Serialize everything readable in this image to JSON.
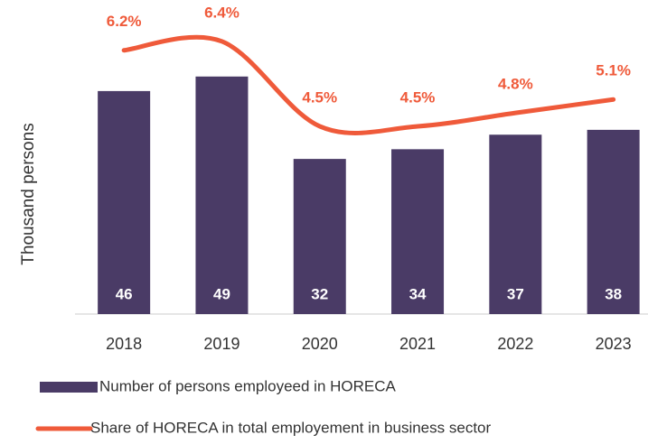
{
  "chart_data": {
    "type": "bar",
    "ylabel": "Thousand persons",
    "categories": [
      "2018",
      "2019",
      "2020",
      "2021",
      "2022",
      "2023"
    ],
    "ylim": [
      0,
      59.2
    ],
    "y2lim": [
      0.3,
      6.72
    ],
    "series": [
      {
        "name": "Number of persons employeed in HORECA",
        "type": "bar",
        "color": "#4a3b66",
        "values": [
          46,
          49,
          32,
          34,
          37,
          38
        ]
      },
      {
        "name": "Share of HORECA in total employement in business sector",
        "type": "line",
        "axis": "y2",
        "color": "#ef5a3a",
        "values": [
          6.2,
          6.4,
          4.5,
          4.5,
          4.8,
          5.1
        ],
        "value_labels": [
          "6.2%",
          "6.4%",
          "4.5%",
          "4.5%",
          "4.8%",
          "5.1%"
        ]
      }
    ]
  }
}
